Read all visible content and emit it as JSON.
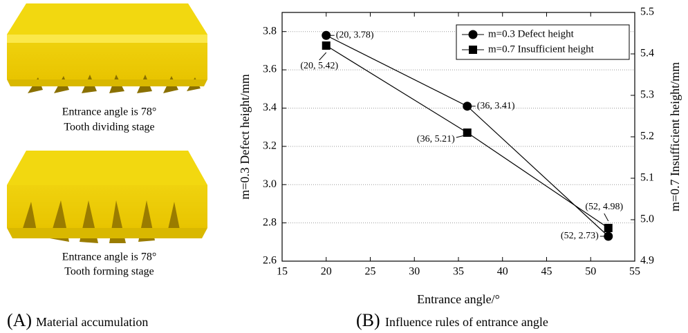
{
  "panels": {
    "a": {
      "label": "(A)",
      "caption": "Material accumulation",
      "images": [
        {
          "lines": [
            "Entrance angle is 78°",
            "Tooth dividing stage"
          ]
        },
        {
          "lines": [
            "Entrance angle is 78°",
            "Tooth forming stage"
          ]
        }
      ]
    },
    "b": {
      "label": "(B)",
      "caption": "Influence rules of entrance angle"
    }
  },
  "chart_data": {
    "type": "line",
    "x": [
      20,
      36,
      52
    ],
    "xlim": [
      15,
      55
    ],
    "xticks": [
      15,
      20,
      25,
      30,
      35,
      40,
      45,
      50,
      55
    ],
    "ylim": [
      2.6,
      3.9
    ],
    "yticks": [
      2.6,
      2.8,
      {
        "value": 3,
        "label": "3.0"
      },
      3.2,
      3.4,
      3.6,
      3.8
    ],
    "y2lim": [
      4.9,
      5.5
    ],
    "y2ticks": [
      4.9,
      {
        "value": 5,
        "label": "5.0"
      },
      5.1,
      5.2,
      5.3,
      5.4,
      5.5
    ],
    "grid": true,
    "legend": "top-right",
    "x_label": "Entrance angle/°",
    "y_label": "m=0.3  Defect height/mm",
    "y2_label": "m=0.7 Insufficient height/mm",
    "series": [
      {
        "name": "m=0.3 Defect height",
        "color": "#000000",
        "marker": "circle",
        "values": [
          3.78,
          3.41,
          2.73
        ],
        "value_labels": [
          "(20, 3.78)",
          "(36, 3.41)",
          "(52, 2.73)"
        ]
      },
      {
        "name": "m=0.7 Insufficient height",
        "color": "#000000",
        "marker": "square",
        "axis": "y2",
        "values": [
          5.42,
          5.21,
          4.98
        ],
        "value_labels": [
          "(20, 5.42)",
          "(36, 5.21)",
          "(52, 4.98)"
        ]
      }
    ]
  }
}
